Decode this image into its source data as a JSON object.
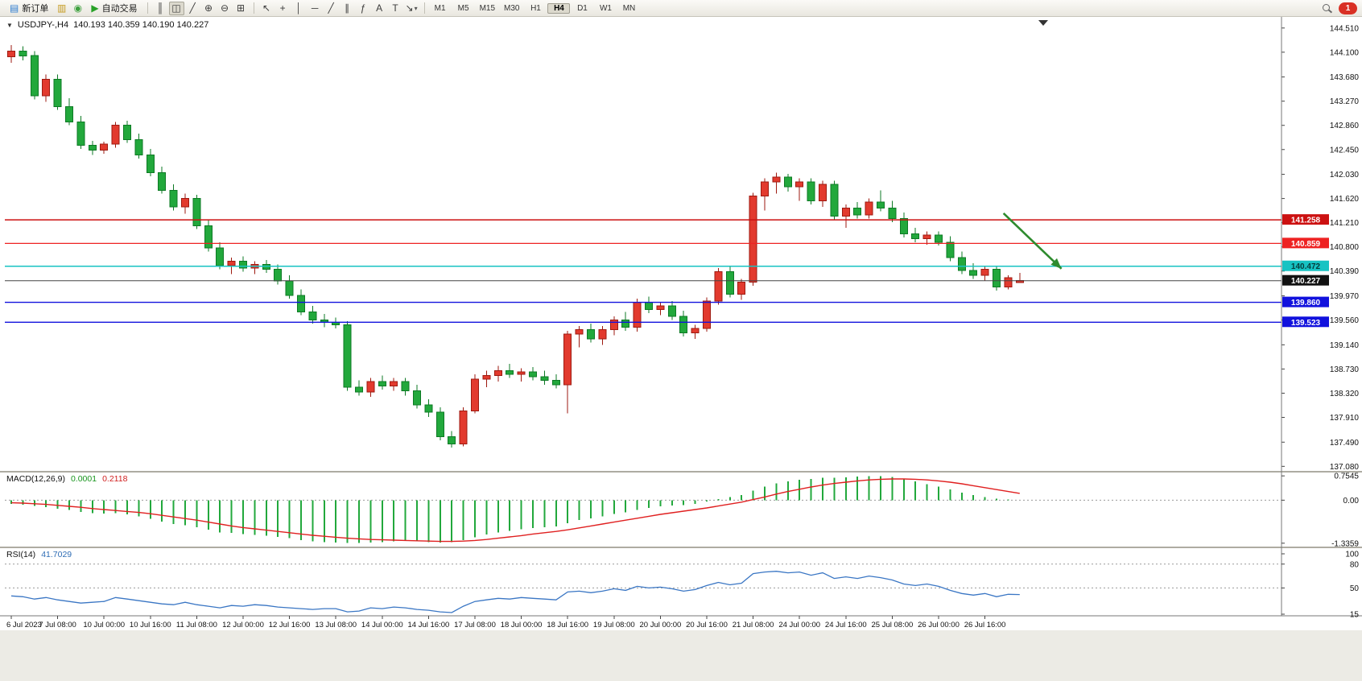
{
  "toolbar": {
    "dropdown_glyph": "▾",
    "notification_count": "1",
    "items": [
      {
        "name": "new-order-button",
        "glyph": "▤",
        "glyph_color": "#2e7dd1",
        "label": "新订单"
      },
      {
        "name": "chart-window-icon",
        "glyph": "▥",
        "glyph_color": "#c59a1e"
      },
      {
        "name": "refresh-icon",
        "glyph": "◉",
        "glyph_color": "#3fa13f"
      },
      {
        "name": "autotrading-button",
        "glyph": "▶",
        "glyph_color": "#27a127",
        "label": "自动交易"
      },
      {
        "type": "sep"
      },
      {
        "name": "bar-chart-icon",
        "glyph": "║"
      },
      {
        "name": "candlestick-chart-icon",
        "glyph": "◫",
        "active": true
      },
      {
        "name": "line-chart-icon",
        "glyph": "╱"
      },
      {
        "name": "zoom-in-icon",
        "glyph": "⊕"
      },
      {
        "name": "zoom-out-icon",
        "glyph": "⊖"
      },
      {
        "name": "tile-windows-icon",
        "glyph": "⊞"
      },
      {
        "type": "sep"
      },
      {
        "name": "cursor-icon",
        "glyph": "↖"
      },
      {
        "name": "crosshair-icon",
        "glyph": "+"
      },
      {
        "name": "vertical-line-icon",
        "glyph": "│"
      },
      {
        "name": "horizontal-line-icon",
        "glyph": "─"
      },
      {
        "name": "trendline-icon",
        "glyph": "╱"
      },
      {
        "name": "equidistant-channel-icon",
        "glyph": "∥"
      },
      {
        "name": "fibonacci-icon",
        "glyph": "ƒ"
      },
      {
        "name": "text-icon",
        "glyph": "A"
      },
      {
        "name": "text-label-icon",
        "glyph": "T"
      },
      {
        "name": "arrows-tool-icon",
        "glyph": "↘",
        "dropdown": true
      },
      {
        "type": "sep"
      }
    ],
    "timeframes": [
      "M1",
      "M5",
      "M15",
      "M30",
      "H1",
      "H4",
      "D1",
      "W1",
      "MN"
    ],
    "active_timeframe": "H4"
  },
  "chart": {
    "dropdown_glyph": "▼",
    "symbol_label": "USDJPY-,H4",
    "ohlc_label": "140.193 140.359 140.190 140.227"
  },
  "chart_data": {
    "type": "candlestick",
    "symbol": "USDJPY",
    "timeframe": "H4",
    "colors": {
      "up": "#e23a2e",
      "up_border": "#9e1a10",
      "down": "#22a83c",
      "down_border": "#0d7a24"
    },
    "price_axis": {
      "min": 137.03,
      "max": 144.63,
      "ticks": [
        "144.510",
        "144.100",
        "143.680",
        "143.270",
        "142.860",
        "142.450",
        "142.030",
        "141.620",
        "141.210",
        "140.800",
        "140.390",
        "139.970",
        "139.560",
        "139.140",
        "138.730",
        "138.320",
        "137.910",
        "137.490",
        "137.080"
      ]
    },
    "bars_per_label": 4,
    "x_labels": [
      "6 Jul 2023",
      "7 Jul 08:00",
      "10 Jul 00:00",
      "10 Jul 16:00",
      "11 Jul 08:00",
      "12 Jul 00:00",
      "12 Jul 16:00",
      "13 Jul 08:00",
      "14 Jul 00:00",
      "14 Jul 16:00",
      "17 Jul 08:00",
      "18 Jul 00:00",
      "18 Jul 16:00",
      "19 Jul 08:00",
      "20 Jul 00:00",
      "20 Jul 16:00",
      "21 Jul 08:00",
      "24 Jul 00:00",
      "24 Jul 16:00",
      "25 Jul 08:00",
      "26 Jul 00:00",
      "26 Jul 16:00"
    ],
    "candles": [
      [
        144.02,
        144.22,
        143.92,
        144.12
      ],
      [
        144.12,
        144.2,
        143.96,
        144.04
      ],
      [
        144.04,
        144.12,
        143.3,
        143.36
      ],
      [
        143.36,
        143.72,
        143.26,
        143.64
      ],
      [
        143.64,
        143.72,
        143.12,
        143.18
      ],
      [
        143.18,
        143.32,
        142.86,
        142.92
      ],
      [
        142.92,
        143.02,
        142.46,
        142.52
      ],
      [
        142.52,
        142.6,
        142.36,
        142.44
      ],
      [
        142.44,
        142.58,
        142.38,
        142.54
      ],
      [
        142.54,
        142.92,
        142.48,
        142.86
      ],
      [
        142.86,
        142.94,
        142.56,
        142.62
      ],
      [
        142.62,
        142.72,
        142.3,
        142.36
      ],
      [
        142.36,
        142.46,
        142.0,
        142.06
      ],
      [
        142.06,
        142.16,
        141.7,
        141.76
      ],
      [
        141.76,
        141.86,
        141.42,
        141.48
      ],
      [
        141.48,
        141.7,
        141.36,
        141.62
      ],
      [
        141.62,
        141.68,
        141.1,
        141.16
      ],
      [
        141.16,
        141.26,
        140.72,
        140.78
      ],
      [
        140.78,
        140.88,
        140.42,
        140.48
      ],
      [
        140.48,
        140.62,
        140.34,
        140.56
      ],
      [
        140.56,
        140.64,
        140.38,
        140.44
      ],
      [
        140.44,
        140.56,
        140.34,
        140.5
      ],
      [
        140.5,
        140.58,
        140.36,
        140.42
      ],
      [
        140.42,
        140.5,
        140.16,
        140.22
      ],
      [
        140.22,
        140.32,
        139.92,
        139.98
      ],
      [
        139.98,
        140.08,
        139.64,
        139.7
      ],
      [
        139.7,
        139.8,
        139.5,
        139.56
      ],
      [
        139.56,
        139.66,
        139.44,
        139.52
      ],
      [
        139.52,
        139.6,
        139.42,
        139.48
      ],
      [
        139.48,
        139.54,
        138.36,
        138.42
      ],
      [
        138.42,
        138.54,
        138.28,
        138.34
      ],
      [
        138.34,
        138.58,
        138.26,
        138.52
      ],
      [
        138.52,
        138.62,
        138.38,
        138.44
      ],
      [
        138.44,
        138.58,
        138.36,
        138.52
      ],
      [
        138.52,
        138.58,
        138.28,
        138.36
      ],
      [
        138.36,
        138.46,
        138.06,
        138.12
      ],
      [
        138.12,
        138.22,
        137.92,
        138.0
      ],
      [
        138.0,
        138.08,
        137.52,
        137.58
      ],
      [
        137.58,
        137.68,
        137.4,
        137.46
      ],
      [
        137.46,
        138.08,
        137.42,
        138.02
      ],
      [
        138.02,
        138.64,
        137.98,
        138.56
      ],
      [
        138.56,
        138.7,
        138.42,
        138.62
      ],
      [
        138.62,
        138.78,
        138.52,
        138.7
      ],
      [
        138.7,
        138.82,
        138.58,
        138.64
      ],
      [
        138.64,
        138.74,
        138.52,
        138.68
      ],
      [
        138.68,
        138.76,
        138.54,
        138.6
      ],
      [
        138.6,
        138.7,
        138.46,
        138.54
      ],
      [
        138.54,
        138.64,
        138.4,
        138.46
      ],
      [
        138.46,
        139.38,
        137.98,
        139.32
      ],
      [
        139.32,
        139.46,
        139.1,
        139.4
      ],
      [
        139.4,
        139.5,
        139.18,
        139.24
      ],
      [
        139.24,
        139.46,
        139.14,
        139.4
      ],
      [
        139.4,
        139.62,
        139.3,
        139.56
      ],
      [
        139.56,
        139.7,
        139.38,
        139.44
      ],
      [
        139.44,
        139.92,
        139.36,
        139.86
      ],
      [
        139.86,
        139.96,
        139.68,
        139.74
      ],
      [
        139.74,
        139.86,
        139.64,
        139.8
      ],
      [
        139.8,
        139.88,
        139.56,
        139.62
      ],
      [
        139.62,
        139.72,
        139.28,
        139.34
      ],
      [
        139.34,
        139.48,
        139.24,
        139.42
      ],
      [
        139.42,
        139.94,
        139.36,
        139.88
      ],
      [
        139.88,
        140.44,
        139.82,
        140.38
      ],
      [
        140.38,
        140.48,
        139.94,
        140.0
      ],
      [
        140.0,
        140.26,
        139.9,
        140.2
      ],
      [
        140.2,
        141.72,
        140.14,
        141.66
      ],
      [
        141.66,
        141.96,
        141.42,
        141.9
      ],
      [
        141.9,
        142.06,
        141.7,
        141.98
      ],
      [
        141.98,
        142.04,
        141.74,
        141.82
      ],
      [
        141.82,
        141.96,
        141.58,
        141.9
      ],
      [
        141.9,
        141.96,
        141.52,
        141.58
      ],
      [
        141.58,
        141.92,
        141.48,
        141.86
      ],
      [
        141.86,
        141.92,
        141.26,
        141.32
      ],
      [
        141.32,
        141.52,
        141.12,
        141.46
      ],
      [
        141.46,
        141.56,
        141.28,
        141.34
      ],
      [
        141.34,
        141.62,
        141.28,
        141.56
      ],
      [
        141.56,
        141.76,
        141.4,
        141.46
      ],
      [
        141.46,
        141.58,
        141.22,
        141.28
      ],
      [
        141.28,
        141.38,
        140.96,
        141.02
      ],
      [
        141.02,
        141.12,
        140.88,
        140.94
      ],
      [
        140.94,
        141.06,
        140.84,
        141.0
      ],
      [
        141.0,
        141.06,
        140.82,
        140.88
      ],
      [
        140.88,
        140.98,
        140.56,
        140.62
      ],
      [
        140.62,
        140.72,
        140.34,
        140.4
      ],
      [
        140.4,
        140.52,
        140.26,
        140.32
      ],
      [
        140.32,
        140.46,
        140.22,
        140.42
      ],
      [
        140.42,
        140.48,
        140.06,
        140.12
      ],
      [
        140.12,
        140.32,
        140.08,
        140.28
      ],
      [
        140.193,
        140.359,
        140.19,
        140.227
      ]
    ],
    "hlines": [
      {
        "value": 141.258,
        "label": "141.258",
        "color": "#cc1111",
        "badge_fg": "#ffffff",
        "width": 1.4
      },
      {
        "value": 140.859,
        "label": "140.859",
        "color": "#ee2222",
        "badge_fg": "#ffffff",
        "width": 1.2
      },
      {
        "value": 140.472,
        "label": "140.472",
        "color": "#17c3c3",
        "badge_fg": "#063b3b",
        "width": 1.4
      },
      {
        "value": 140.227,
        "label": "140.227",
        "color": "#444444",
        "badge_bg": "#111111",
        "badge_fg": "#ffffff",
        "width": 1
      },
      {
        "value": 139.86,
        "label": "139.860",
        "color": "#1111dd",
        "badge_fg": "#ffffff",
        "width": 1.4
      },
      {
        "value": 139.523,
        "label": "139.523",
        "color": "#1111dd",
        "badge_fg": "#ffffff",
        "width": 1.4
      }
    ],
    "arrow": {
      "from_bar": 85.6,
      "from_price": 141.37,
      "to_bar": 90.6,
      "to_price": 140.43,
      "color": "#2e8b2e"
    },
    "macd": {
      "label": "MACD(12,26,9)",
      "value_main": "0.0001",
      "value_signal": "0.2118",
      "params": [
        12,
        26,
        9
      ],
      "axis_ticks": [
        "0.7545",
        "0.00",
        "-1.3359"
      ],
      "histogram_color": "#22a83c",
      "signal_color": "#e02020",
      "histogram": [
        -0.12,
        -0.14,
        -0.18,
        -0.22,
        -0.26,
        -0.3,
        -0.36,
        -0.4,
        -0.42,
        -0.4,
        -0.44,
        -0.5,
        -0.58,
        -0.66,
        -0.74,
        -0.78,
        -0.84,
        -0.92,
        -1.0,
        -1.02,
        -1.05,
        -1.08,
        -1.1,
        -1.14,
        -1.18,
        -1.24,
        -1.28,
        -1.3,
        -1.31,
        -1.33,
        -1.33,
        -1.31,
        -1.3,
        -1.28,
        -1.27,
        -1.28,
        -1.3,
        -1.31,
        -1.3,
        -1.24,
        -1.15,
        -1.07,
        -1.0,
        -0.95,
        -0.9,
        -0.86,
        -0.84,
        -0.82,
        -0.72,
        -0.62,
        -0.56,
        -0.5,
        -0.43,
        -0.38,
        -0.3,
        -0.24,
        -0.19,
        -0.16,
        -0.15,
        -0.11,
        -0.04,
        0.04,
        0.1,
        0.16,
        0.3,
        0.42,
        0.52,
        0.58,
        0.63,
        0.66,
        0.7,
        0.7,
        0.71,
        0.73,
        0.745,
        0.75,
        0.72,
        0.66,
        0.58,
        0.5,
        0.42,
        0.33,
        0.24,
        0.16,
        0.1,
        0.05,
        0.02,
        0.0001
      ],
      "signal": [
        -0.08,
        -0.09,
        -0.11,
        -0.13,
        -0.16,
        -0.19,
        -0.22,
        -0.26,
        -0.29,
        -0.32,
        -0.35,
        -0.38,
        -0.42,
        -0.47,
        -0.52,
        -0.57,
        -0.62,
        -0.68,
        -0.74,
        -0.8,
        -0.85,
        -0.89,
        -0.93,
        -0.97,
        -1.01,
        -1.05,
        -1.09,
        -1.12,
        -1.15,
        -1.18,
        -1.2,
        -1.22,
        -1.23,
        -1.24,
        -1.25,
        -1.26,
        -1.27,
        -1.28,
        -1.28,
        -1.27,
        -1.25,
        -1.22,
        -1.18,
        -1.14,
        -1.1,
        -1.05,
        -1.01,
        -0.97,
        -0.92,
        -0.86,
        -0.8,
        -0.74,
        -0.68,
        -0.62,
        -0.56,
        -0.5,
        -0.44,
        -0.39,
        -0.34,
        -0.29,
        -0.24,
        -0.18,
        -0.12,
        -0.06,
        0.02,
        0.1,
        0.19,
        0.27,
        0.34,
        0.41,
        0.47,
        0.52,
        0.56,
        0.6,
        0.63,
        0.65,
        0.66,
        0.66,
        0.65,
        0.63,
        0.6,
        0.56,
        0.51,
        0.45,
        0.39,
        0.33,
        0.27,
        0.2118
      ]
    },
    "rsi": {
      "label": "RSI(14)",
      "value_text": "41.7029",
      "period": 14,
      "min": 15,
      "max": 100,
      "levels": [
        80,
        50
      ],
      "axis_ticks": [
        "100",
        "80",
        "50",
        "15"
      ],
      "line_color": "#3a76c4",
      "values": [
        40,
        39,
        36,
        38,
        35,
        33,
        31,
        32,
        33,
        38,
        36,
        34,
        32,
        30,
        29,
        32,
        29,
        27,
        25,
        28,
        27,
        29,
        28,
        26,
        25,
        24,
        23,
        24,
        24,
        20,
        21,
        25,
        24,
        26,
        25,
        23,
        22,
        20,
        19,
        27,
        33,
        35,
        37,
        36,
        38,
        37,
        36,
        35,
        45,
        46,
        44,
        46,
        49,
        47,
        52,
        50,
        51,
        49,
        46,
        48,
        53,
        57,
        54,
        56,
        68,
        70,
        71,
        69,
        70,
        66,
        69,
        62,
        64,
        62,
        65,
        63,
        60,
        55,
        53,
        55,
        52,
        47,
        43,
        41,
        43,
        39,
        42,
        41.7
      ]
    }
  }
}
